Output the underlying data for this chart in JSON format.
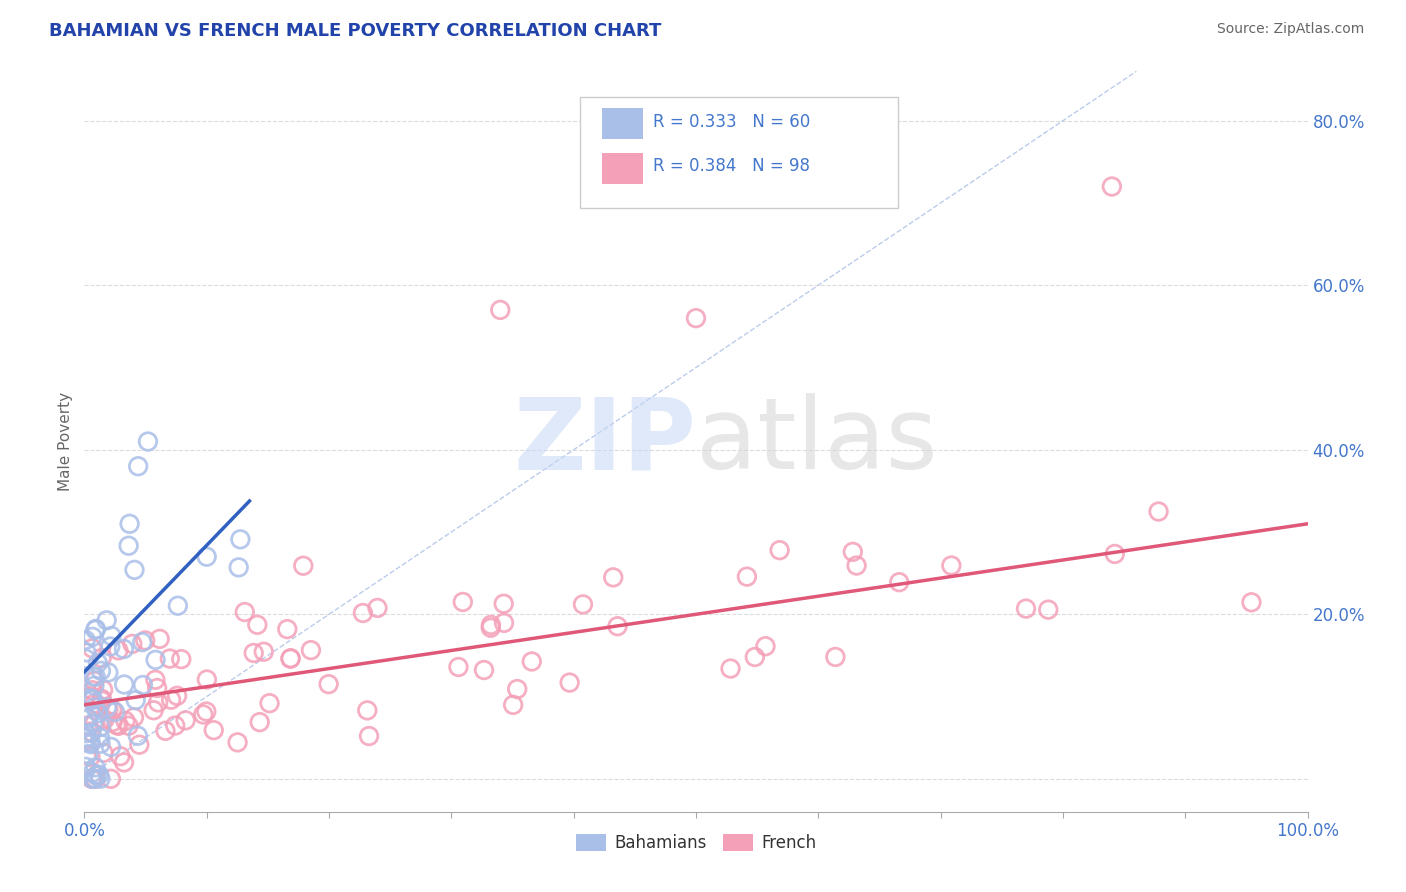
{
  "title": "BAHAMIAN VS FRENCH MALE POVERTY CORRELATION CHART",
  "source_text": "Source: ZipAtlas.com",
  "ylabel": "Male Poverty",
  "xlim": [
    0.0,
    1.0
  ],
  "ylim": [
    -0.04,
    0.86
  ],
  "y_ticks": [
    0.0,
    0.2,
    0.4,
    0.6,
    0.8
  ],
  "y_tick_labels": [
    "",
    "20.0%",
    "40.0%",
    "60.0%",
    "80.0%"
  ],
  "bahamian_R": 0.333,
  "bahamian_N": 60,
  "french_R": 0.384,
  "french_N": 98,
  "bahamian_color": "#aabfe8",
  "french_color": "#f4a0b8",
  "bahamian_line_color": "#3060c0",
  "french_line_color": "#e05878",
  "ref_line_color": "#aabfe8",
  "background_color": "#ffffff",
  "title_color": "#2244aa",
  "title_fontsize": 13,
  "axis_label_color": "#666666",
  "tick_label_color": "#4477cc",
  "source_color": "#666666",
  "legend_color": "#4477cc",
  "grid_color": "#cccccc"
}
